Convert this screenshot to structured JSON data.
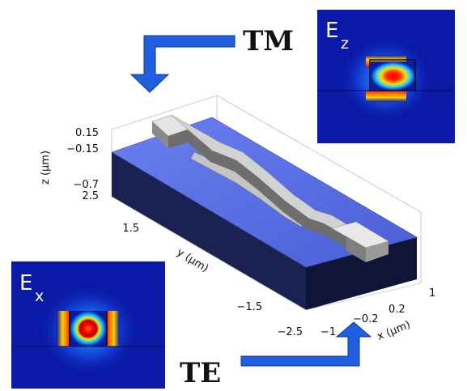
{
  "labels": {
    "tm": "TM",
    "te": "TE",
    "panel_top": "E",
    "panel_top_sub": "z",
    "panel_bottom": "E",
    "panel_bottom_sub": "x"
  },
  "axes": {
    "z_label": "z (μm)",
    "y_label": "y (μm)",
    "x_label": "x (μm)",
    "z_ticks": [
      "0.15",
      "−0.15",
      "−0.7"
    ],
    "y_ticks": [
      "2.5",
      "1.5",
      "−1.5",
      "−2.5"
    ],
    "x_ticks": [
      "−1",
      "−0.2",
      "0.2",
      "1"
    ]
  },
  "colors": {
    "arrow": "#1f5fe0",
    "field_background": "#0a1aa6",
    "substrate_top": "#5f74e6",
    "substrate_side": "#1a2258",
    "waveguide": "#c9c9c9"
  }
}
